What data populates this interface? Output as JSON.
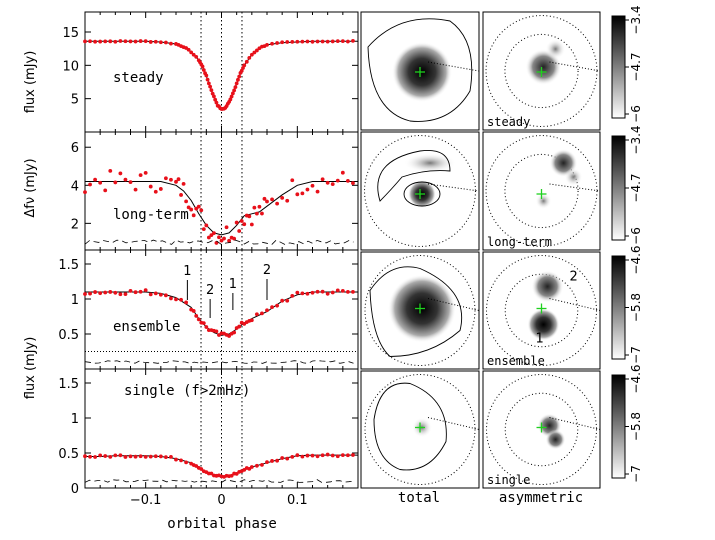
{
  "chart_data": [
    {
      "type": "line",
      "panel": "steady",
      "title": "",
      "label": "steady",
      "xlabel": "orbital phase",
      "ylabel": "flux (mJy)",
      "xlim": [
        -0.18,
        0.18
      ],
      "ylim": [
        0,
        18
      ],
      "yticks": [
        5,
        10,
        15
      ],
      "x": [
        -0.18,
        -0.16,
        -0.14,
        -0.12,
        -0.1,
        -0.08,
        -0.06,
        -0.05,
        -0.04,
        -0.03,
        -0.025,
        -0.02,
        -0.015,
        -0.01,
        -0.005,
        0.0,
        0.005,
        0.01,
        0.015,
        0.02,
        0.025,
        0.03,
        0.04,
        0.05,
        0.06,
        0.08,
        0.1,
        0.12,
        0.14,
        0.16,
        0.18
      ],
      "series": [
        {
          "values": [
            13.6,
            13.6,
            13.6,
            13.6,
            13.6,
            13.5,
            13.2,
            12.8,
            12.0,
            10.8,
            9.8,
            8.4,
            6.8,
            5.3,
            4.0,
            3.4,
            3.6,
            4.5,
            5.8,
            7.3,
            8.8,
            10.0,
            11.6,
            12.6,
            13.1,
            13.4,
            13.5,
            13.6,
            13.6,
            13.6,
            13.6
          ]
        }
      ]
    },
    {
      "type": "line",
      "panel": "long-term",
      "label": "long-term",
      "ylabel": "Δfν (mJy)",
      "xlim": [
        -0.18,
        0.18
      ],
      "ylim": [
        0.6,
        6.8
      ],
      "yticks": [
        2,
        4,
        6
      ],
      "x": [
        -0.18,
        -0.16,
        -0.14,
        -0.12,
        -0.1,
        -0.08,
        -0.06,
        -0.05,
        -0.04,
        -0.03,
        -0.02,
        -0.01,
        0.0,
        0.01,
        0.02,
        0.03,
        0.04,
        0.05,
        0.06,
        0.08,
        0.1,
        0.12,
        0.14,
        0.16,
        0.18
      ],
      "series": [
        {
          "name": "",
          "values": [
            4.2,
            4.2,
            4.2,
            4.2,
            4.2,
            4.2,
            4.0,
            3.7,
            3.2,
            2.5,
            1.9,
            1.5,
            1.4,
            1.5,
            1.9,
            2.4,
            2.5,
            2.6,
            2.9,
            3.5,
            4.0,
            4.2,
            4.2,
            4.2,
            4.2
          ]
        }
      ]
    },
    {
      "type": "line",
      "panel": "ensemble",
      "label": "ensemble",
      "ylabel": "flux (mJy)",
      "xlim": [
        -0.18,
        0.18
      ],
      "ylim": [
        0,
        1.7
      ],
      "yticks": [
        0.5,
        1,
        1.5
      ],
      "annotations": [
        "1",
        "2",
        "1",
        "2"
      ],
      "x": [
        -0.18,
        -0.16,
        -0.14,
        -0.12,
        -0.1,
        -0.08,
        -0.06,
        -0.04,
        -0.03,
        -0.02,
        -0.01,
        0.0,
        0.01,
        0.02,
        0.03,
        0.04,
        0.06,
        0.08,
        0.1,
        0.12,
        0.14,
        0.16,
        0.18
      ],
      "series": [
        {
          "values": [
            1.1,
            1.1,
            1.1,
            1.1,
            1.1,
            1.08,
            1.02,
            0.88,
            0.72,
            0.6,
            0.52,
            0.48,
            0.5,
            0.57,
            0.66,
            0.72,
            0.82,
            0.97,
            1.06,
            1.1,
            1.1,
            1.1,
            1.1
          ]
        }
      ]
    },
    {
      "type": "line",
      "panel": "single",
      "label": "single (f>2mHz)",
      "ylabel": "flux (mJy)",
      "xlim": [
        -0.18,
        0.18
      ],
      "ylim": [
        0,
        1.7
      ],
      "yticks": [
        0,
        0.5,
        1,
        1.5
      ],
      "xticks": [
        -0.1,
        0,
        0.1
      ],
      "xticklabels": [
        "−0.1",
        "0",
        "0.1"
      ],
      "x": [
        -0.18,
        -0.16,
        -0.14,
        -0.12,
        -0.1,
        -0.08,
        -0.06,
        -0.04,
        -0.03,
        -0.02,
        -0.01,
        0.0,
        0.01,
        0.02,
        0.03,
        0.04,
        0.06,
        0.08,
        0.1,
        0.12,
        0.14,
        0.16,
        0.18
      ],
      "series": [
        {
          "values": [
            0.45,
            0.45,
            0.46,
            0.46,
            0.46,
            0.45,
            0.42,
            0.36,
            0.3,
            0.23,
            0.18,
            0.16,
            0.17,
            0.21,
            0.26,
            0.3,
            0.36,
            0.42,
            0.46,
            0.47,
            0.47,
            0.47,
            0.47
          ]
        }
      ]
    }
  ],
  "maps": {
    "column_labels": [
      "total",
      "asymmetric"
    ],
    "row_labels": [
      "steady",
      "long-term",
      "ensemble",
      "single"
    ],
    "colorbars": [
      {
        "ticks": [
          "−3.4",
          "−4.7",
          "−6"
        ]
      },
      {
        "ticks": [
          "−3.4",
          "−4.7",
          "−6"
        ]
      },
      {
        "ticks": [
          "−4.6",
          "−5.8",
          "−7"
        ]
      },
      {
        "ticks": [
          "−4.6",
          "−5.8",
          "−7"
        ]
      }
    ],
    "ensemble_labels": [
      "2",
      "1"
    ]
  }
}
